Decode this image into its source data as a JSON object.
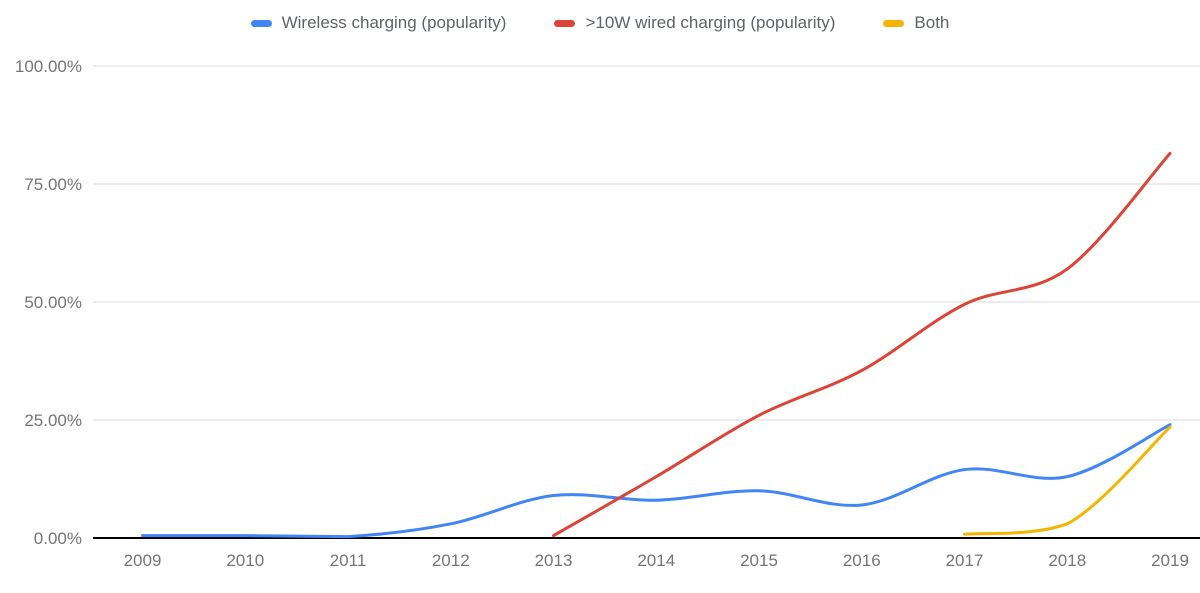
{
  "chart_data": {
    "type": "line",
    "title": "",
    "xlabel": "",
    "ylabel": "",
    "x_labels": [
      "2009",
      "2010",
      "2011",
      "2012",
      "2013",
      "2014",
      "2015",
      "2016",
      "2017",
      "2018",
      "2019"
    ],
    "y_ticks": [
      {
        "value": 0,
        "label": "0.00%"
      },
      {
        "value": 25,
        "label": "25.00%"
      },
      {
        "value": 50,
        "label": "50.00%"
      },
      {
        "value": 75,
        "label": "75.00%"
      },
      {
        "value": 100,
        "label": "100.00%"
      }
    ],
    "ylim": [
      0,
      100
    ],
    "grid": "horizontal",
    "legend_position": "top",
    "line_smoothing": true,
    "series": [
      {
        "name": "Wireless charging (popularity)",
        "color": "#4285F4",
        "values": [
          0.5,
          0.5,
          0.3,
          3,
          9,
          8,
          10,
          7,
          14.5,
          13,
          24
        ]
      },
      {
        "name": ">10W wired charging (popularity)",
        "color": "#DB4437",
        "values": [
          null,
          null,
          null,
          null,
          0.5,
          13,
          26,
          35.5,
          49.5,
          57,
          81.5
        ]
      },
      {
        "name": "Both",
        "color": "#F4B400",
        "values": [
          null,
          null,
          null,
          null,
          null,
          null,
          null,
          null,
          0.8,
          3,
          23.5
        ]
      }
    ],
    "colors": {
      "background": "#ffffff",
      "axis": "#000000",
      "gridline": "#d9d9d9",
      "axis_label": "#757575",
      "legend_text": "#5f6368"
    }
  }
}
